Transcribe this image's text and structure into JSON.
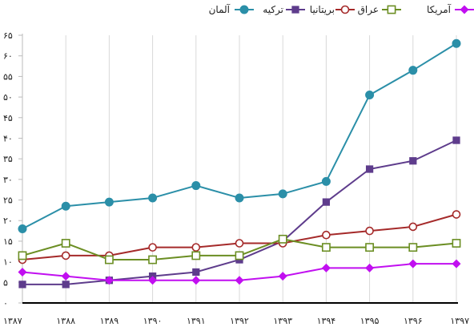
{
  "chart_data": {
    "type": "line",
    "title": "",
    "xlabel": "",
    "ylabel": "",
    "categories": [
      "۱۳۸۷",
      "۱۳۸۸",
      "۱۳۸۹",
      "۱۳۹۰",
      "۱۳۹۱",
      "۱۳۹۲",
      "۱۳۹۳",
      "۱۳۹۴",
      "۱۳۹۵",
      "۱۳۹۶",
      "۱۳۹۷"
    ],
    "ylim": [
      0,
      65
    ],
    "yticks": [
      0,
      5,
      10,
      15,
      20,
      25,
      30,
      35,
      40,
      45,
      50,
      55,
      60,
      65
    ],
    "ytick_labels": [
      "۰",
      "۵",
      "۱۰",
      "۱۵",
      "۲۰",
      "۲۵",
      "۳۰",
      "۳۵",
      "۴۰",
      "۴۵",
      "۵۰",
      "۵۵",
      "۶۰",
      "۶۵"
    ],
    "grid": "vertical",
    "legend_position": "top",
    "series": [
      {
        "name": "آلمان",
        "color": "#2b8fa8",
        "marker": "circle",
        "values": [
          18,
          23.5,
          24.5,
          25.5,
          28.5,
          25.5,
          26.5,
          29.5,
          50.5,
          56.5,
          63
        ]
      },
      {
        "name": "ترکیه",
        "color": "#5e3c8c",
        "marker": "square",
        "values": [
          4.5,
          4.5,
          5.5,
          6.5,
          7.5,
          10.5,
          15,
          24.5,
          32.5,
          34.5,
          39.5
        ]
      },
      {
        "name": "بریتانیا",
        "color": "#a52a2a",
        "marker": "circle-open",
        "values": [
          10.5,
          11.5,
          11.5,
          13.5,
          13.5,
          14.5,
          14.5,
          16.5,
          17.5,
          18.5,
          21.5
        ]
      },
      {
        "name": "عراق",
        "color": "#6b8e23",
        "marker": "square-open",
        "values": [
          11.5,
          14.5,
          10.5,
          10.5,
          11.5,
          11.5,
          15.5,
          13.5,
          13.5,
          13.5,
          14.5
        ]
      },
      {
        "name": "آمریکا",
        "color": "#c10ff0",
        "marker": "diamond",
        "values": [
          7.5,
          6.5,
          5.5,
          5.5,
          5.5,
          5.5,
          6.5,
          8.5,
          8.5,
          9.5,
          9.5
        ]
      }
    ]
  }
}
